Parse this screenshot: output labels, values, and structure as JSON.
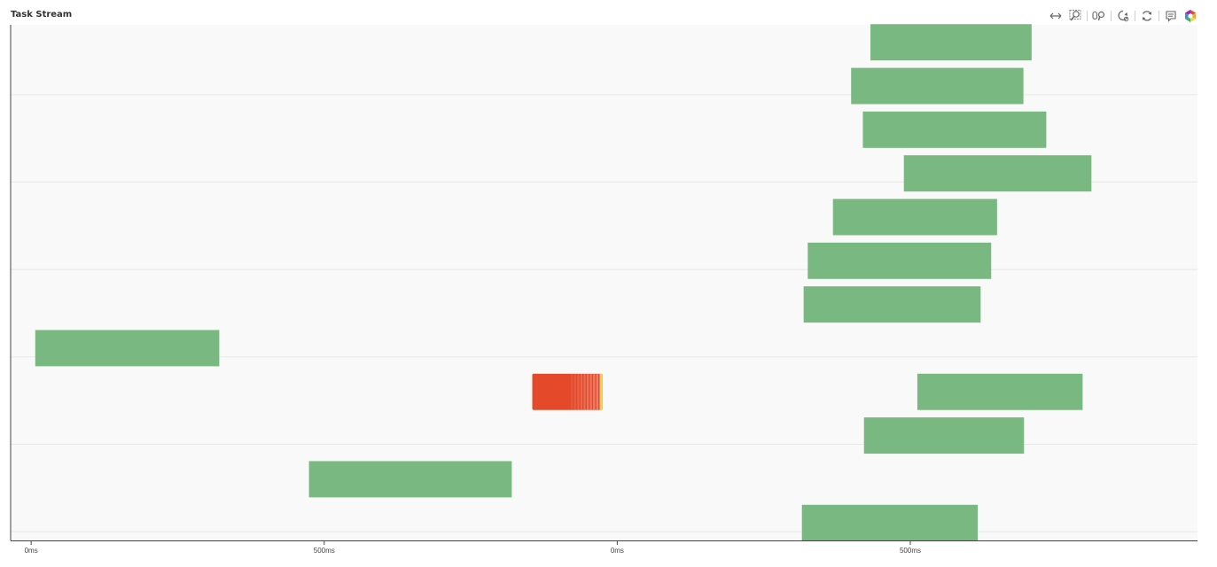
{
  "header": {
    "title": "Task Stream"
  },
  "toolbar": {
    "tools": [
      {
        "name": "pan-tool-icon",
        "active": false
      },
      {
        "name": "box-zoom-tool-icon",
        "active": true
      },
      {
        "name": "wheel-zoom-tool-icon",
        "active": false
      },
      {
        "name": "zoom-out-tool-icon",
        "active": true
      },
      {
        "name": "reset-tool-icon",
        "active": false
      },
      {
        "name": "hover-tool-icon",
        "active": true
      },
      {
        "name": "bokeh-logo-icon",
        "active": false
      }
    ]
  },
  "colors": {
    "plot_background": "#f9f9f9",
    "grid": "#e8e8e8",
    "axis": "#444444",
    "task_green": "#76b87e",
    "task_red": "#e4492a",
    "task_yellow": "#f3d250"
  },
  "chart_data": {
    "type": "gantt",
    "title": "Task Stream",
    "x_tick_labels": [
      "0ms",
      "500ms",
      "0ms",
      "500ms"
    ],
    "x_tick_values_ms": [
      0,
      500,
      1000,
      1500
    ],
    "xlim_ms": [
      -35,
      1990
    ],
    "ylim": [
      0,
      11.8
    ],
    "grid": true,
    "tasks": [
      {
        "row": 11.4,
        "start_ms": 1432,
        "stop_ms": 1707,
        "color": "green"
      },
      {
        "row": 10.4,
        "start_ms": 1399,
        "stop_ms": 1693,
        "color": "green"
      },
      {
        "row": 9.4,
        "start_ms": 1419,
        "stop_ms": 1732,
        "color": "green"
      },
      {
        "row": 8.4,
        "start_ms": 1489,
        "stop_ms": 1809,
        "color": "green"
      },
      {
        "row": 7.4,
        "start_ms": 1368,
        "stop_ms": 1648,
        "color": "green"
      },
      {
        "row": 6.4,
        "start_ms": 1325,
        "stop_ms": 1638,
        "color": "green"
      },
      {
        "row": 5.4,
        "start_ms": 1318,
        "stop_ms": 1620,
        "color": "green"
      },
      {
        "row": 4.4,
        "start_ms": 7,
        "stop_ms": 321,
        "color": "green"
      },
      {
        "row": 3.4,
        "start_ms": 1512,
        "stop_ms": 1794,
        "color": "green"
      },
      {
        "row": 2.4,
        "start_ms": 1421,
        "stop_ms": 1694,
        "color": "green"
      },
      {
        "row": 1.4,
        "start_ms": 474,
        "stop_ms": 820,
        "color": "green"
      },
      {
        "row": 0.4,
        "start_ms": 1315,
        "stop_ms": 1615,
        "color": "green"
      }
    ],
    "transfer_block": {
      "row": 3.4,
      "start_ms": 855,
      "stop_ms": 975,
      "stripes": 10,
      "color": "red",
      "edge_color": "yellow"
    }
  }
}
